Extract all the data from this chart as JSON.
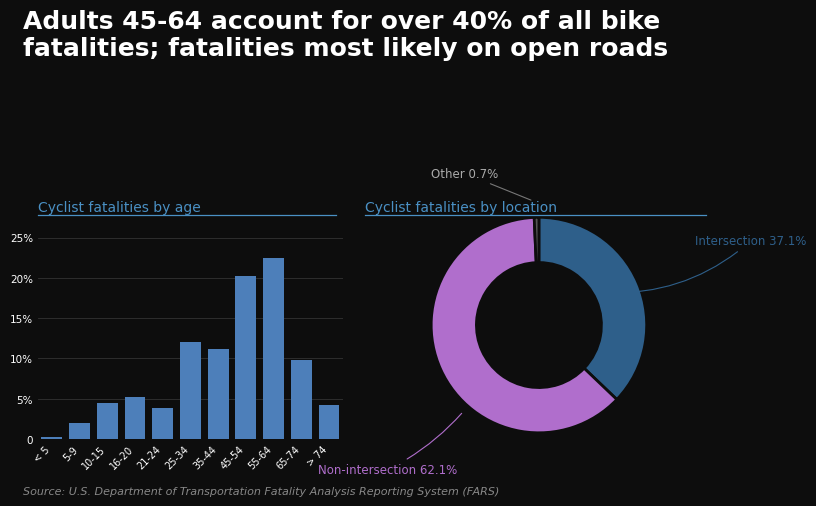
{
  "title": "Adults 45-64 account for over 40% of all bike\nfatalities; fatalities most likely on open roads",
  "title_fontsize": 18,
  "title_fontweight": "bold",
  "background_color": "#0d0d0d",
  "bar_subtitle": "Cyclist fatalities by age",
  "pie_subtitle": "Cyclist fatalities by location",
  "subtitle_fontsize": 10,
  "subtitle_color": "#4a90c4",
  "bar_categories": [
    "< 5",
    "5-9",
    "10-15",
    "16-20",
    "21-24",
    "25-34",
    "35-44",
    "45-54",
    "55-64",
    "65-74",
    "> 74"
  ],
  "bar_values": [
    0.3,
    2.0,
    4.5,
    5.2,
    3.8,
    12.0,
    11.2,
    20.2,
    22.5,
    9.8,
    4.2
  ],
  "bar_color": "#4d7fba",
  "bar_yticks": [
    0,
    5,
    10,
    15,
    20,
    25
  ],
  "bar_ytick_labels": [
    "0",
    "5%",
    "10%",
    "15%",
    "20%",
    "25%"
  ],
  "bar_ylim": [
    0,
    27
  ],
  "pie_values": [
    37.1,
    62.1,
    0.7
  ],
  "pie_label_intersection": "Intersection 37.1%",
  "pie_label_nonintersection": "Non-intersection 62.1%",
  "pie_label_other": "Other 0.7%",
  "pie_color_intersection": "#2e5f8a",
  "pie_color_nonintersection": "#b06ecc",
  "pie_color_other": "#555555",
  "pie_startangle": 90,
  "source_text": "Source: U.S. Department of Transportation Fatality Analysis Reporting System (FARS)",
  "source_fontsize": 8,
  "source_color": "#888888",
  "grid_color": "#333333",
  "text_color": "#ffffff"
}
